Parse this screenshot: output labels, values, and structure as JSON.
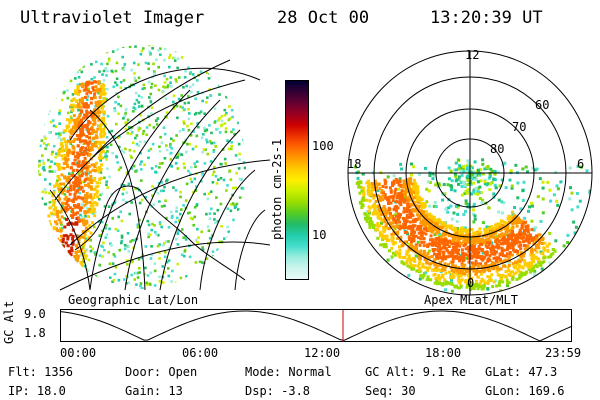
{
  "header": {
    "instrument": "Ultraviolet Imager",
    "date": "28 Oct 00",
    "time": "13:20:39 UT"
  },
  "colorbar": {
    "unit_label": "photon cm-2s-1",
    "ticks": [
      "100",
      "10"
    ],
    "colors": [
      "#000033",
      "#330033",
      "#660033",
      "#990022",
      "#cc0000",
      "#ee3300",
      "#ff6600",
      "#ff9900",
      "#ffcc00",
      "#ffee00",
      "#ccee00",
      "#99dd00",
      "#55cc22",
      "#22bb66",
      "#22ccaa",
      "#44ddcc",
      "#99eedd",
      "#ccf4ee",
      "#e8f8f8"
    ]
  },
  "left_image": {
    "caption": "Geographic Lat/Lon"
  },
  "right_image": {
    "caption": "Apex MLat/MLT",
    "mlt_labels": {
      "top": "12",
      "left": "18",
      "right": "6",
      "bottom": "0"
    },
    "mlat_labels": [
      "60",
      "70",
      "80"
    ]
  },
  "timeline": {
    "axis_label": "GC Alt",
    "y_ticks": [
      "9.0",
      "1.8"
    ],
    "x_ticks": [
      "00:00",
      "06:00",
      "12:00",
      "18:00",
      "23:59"
    ],
    "current_marker_color": "#cc0000"
  },
  "status": {
    "flt": "Flt: 1356",
    "ip": "IP: 18.0",
    "door": "Door: Open",
    "gain": "Gain: 13",
    "mode": "Mode: Normal",
    "dsp": "Dsp:   -3.8",
    "gc_alt": "GC Alt: 9.1 Re",
    "seq": "Seq: 30",
    "glat": "GLat:  47.3",
    "glon": "GLon: 169.6"
  }
}
